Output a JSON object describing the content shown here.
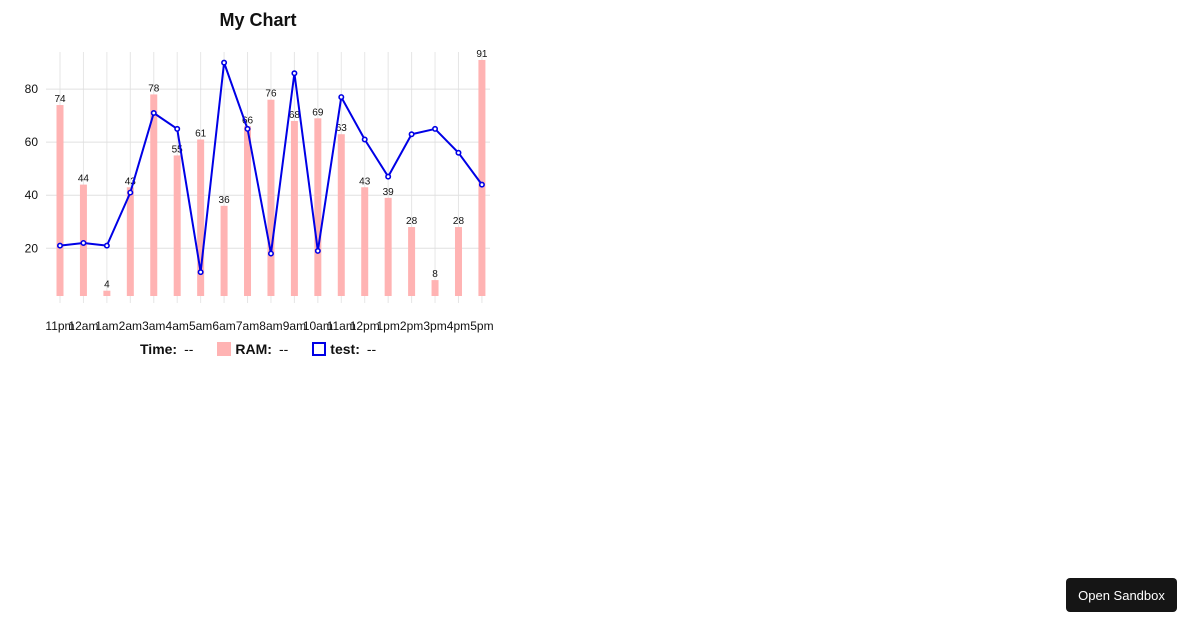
{
  "chart_data": {
    "type": "bar",
    "title": "My Chart",
    "categories": [
      "11pm",
      "12am",
      "1am",
      "2am",
      "3am",
      "4am",
      "5am",
      "6am",
      "7am",
      "8am",
      "9am",
      "10am",
      "11am",
      "12pm",
      "1pm",
      "2pm",
      "3pm",
      "4pm",
      "5pm"
    ],
    "series": [
      {
        "name": "RAM",
        "type": "bar",
        "color": "#ffb3b3",
        "values": [
          74,
          44,
          4,
          43,
          78,
          55,
          61,
          36,
          66,
          76,
          68,
          69,
          63,
          43,
          39,
          28,
          8,
          28,
          91
        ]
      },
      {
        "name": "test",
        "type": "line",
        "color": "#0000e6",
        "values": [
          21,
          22,
          21,
          41,
          71,
          65,
          11,
          90,
          65,
          18,
          86,
          19,
          77,
          61,
          47,
          63,
          65,
          56,
          44
        ]
      }
    ],
    "y_ticks": [
      20,
      40,
      60,
      80
    ],
    "ylim": [
      2,
      94
    ],
    "grid": true,
    "data_labels": "RAM"
  },
  "legend": {
    "time_label": "Time:",
    "time_value": "--",
    "ram_label": "RAM:",
    "ram_value": "--",
    "test_label": "test:",
    "test_value": "--"
  },
  "sandbox_button": {
    "label": "Open Sandbox"
  }
}
